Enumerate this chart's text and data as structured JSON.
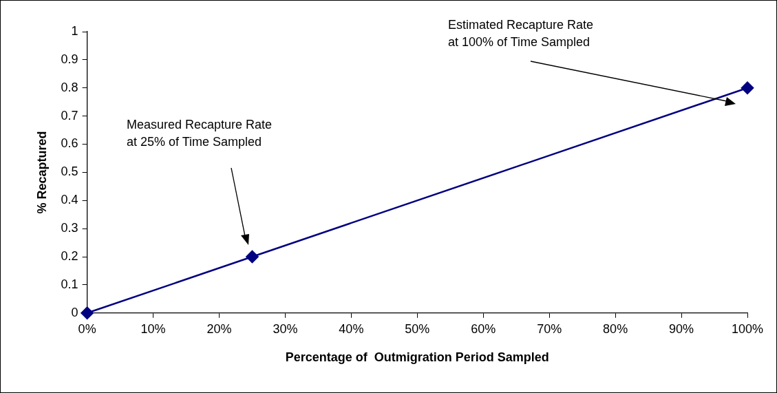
{
  "chart_data": {
    "type": "line",
    "xlabel": "Percentage of  Outmigration Period Sampled",
    "ylabel": "% Recaptured",
    "x": [
      0,
      25,
      100
    ],
    "series": [
      {
        "color": "#000080",
        "values": [
          0,
          0.2,
          0.8
        ]
      }
    ],
    "xlim": [
      0,
      100
    ],
    "xticks": [
      {
        "value": 0,
        "label": "0%"
      },
      {
        "value": 10,
        "label": "10%"
      },
      {
        "value": 20,
        "label": "20%"
      },
      {
        "value": 30,
        "label": "30%"
      },
      {
        "value": 40,
        "label": "40%"
      },
      {
        "value": 50,
        "label": "50%"
      },
      {
        "value": 60,
        "label": "60%"
      },
      {
        "value": 70,
        "label": "70%"
      },
      {
        "value": 80,
        "label": "80%"
      },
      {
        "value": 90,
        "label": "90%"
      },
      {
        "value": 100,
        "label": "100%"
      }
    ],
    "ylim": [
      0,
      1
    ],
    "yticks": [
      0,
      0.1,
      0.2,
      0.3,
      0.4,
      0.5,
      0.6,
      0.7,
      0.8,
      0.9,
      1
    ],
    "grid": false,
    "legend": false,
    "marker": "diamond",
    "line_style": "solid",
    "annotations": [
      "Measured Recapture Rate\nat 25% of Time Sampled",
      "Estimated Recapture Rate\nat 100% of Time Sampled"
    ]
  }
}
